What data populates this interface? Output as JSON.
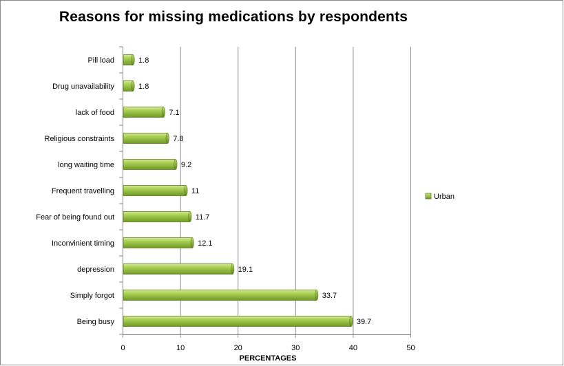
{
  "chart_data": {
    "type": "bar",
    "orientation": "horizontal",
    "title": "Reasons  for missing medications by respondents",
    "xlabel": "PERCENTAGES",
    "ylabel": "",
    "xlim": [
      0,
      50
    ],
    "x_ticks": [
      "0",
      "10",
      "20",
      "30",
      "40",
      "50"
    ],
    "grid": "vertical major gridlines",
    "legend_position": "right",
    "categories": [
      "Pill load",
      "Drug unavailability",
      "lack of food",
      "Religious constraints",
      "long waiting time",
      "Frequent travelling",
      "Fear of being found out",
      "Inconvinient timing",
      "depression",
      "Simply forgot",
      "Being busy"
    ],
    "series": [
      {
        "name": "Urban",
        "color": "#8db33b",
        "values": [
          1.8,
          1.8,
          7.1,
          7.8,
          9.2,
          11,
          11.7,
          12.1,
          19.1,
          33.7,
          39.7
        ],
        "value_labels": [
          "1.8",
          "1.8",
          "7.1",
          "7.8",
          "9.2",
          "11",
          "11.7",
          "12.1",
          "19.1",
          "33.7",
          "39.7"
        ]
      }
    ]
  }
}
